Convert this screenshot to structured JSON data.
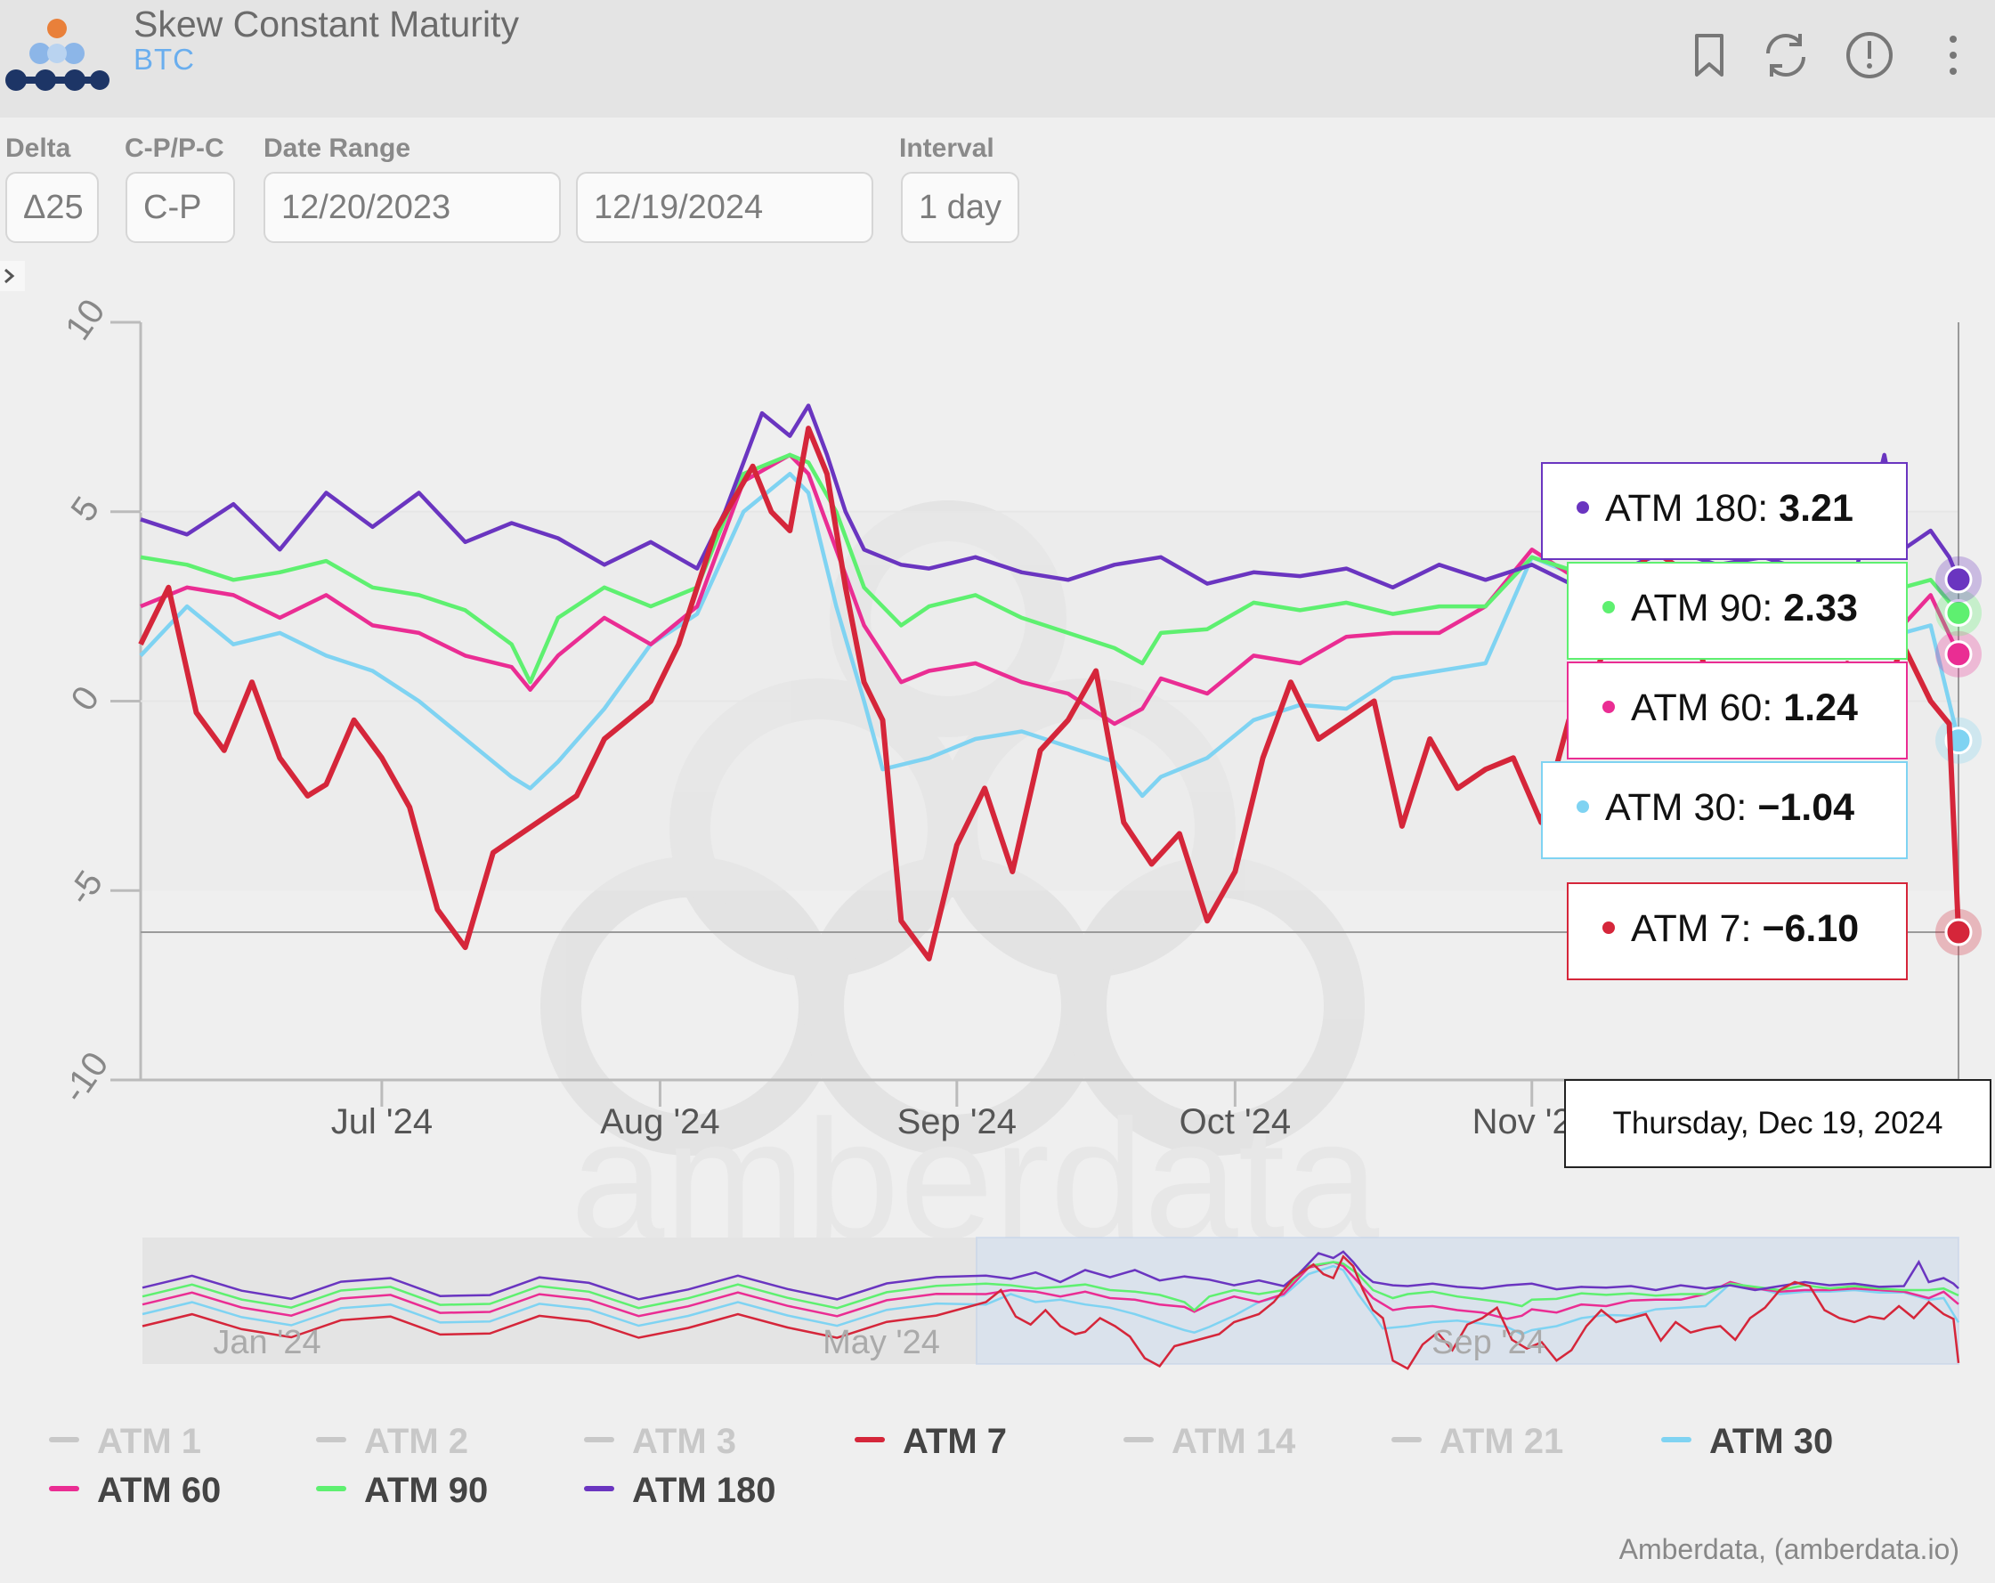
{
  "header": {
    "title": "Skew Constant Maturity",
    "subtitle": "BTC",
    "icons": [
      "bookmark-icon",
      "refresh-icon",
      "info-icon",
      "more-icon"
    ]
  },
  "controls": {
    "delta": {
      "label": "Delta",
      "value": "Δ25"
    },
    "cp": {
      "label": "C-P/P-C",
      "value": "C-P"
    },
    "date_range": {
      "label": "Date Range",
      "start": "12/20/2023",
      "end": "12/19/2024"
    },
    "interval": {
      "label": "Interval",
      "value": "1 day"
    }
  },
  "tooltip": {
    "date": "Thursday, Dec 19, 2024",
    "rows": [
      {
        "name": "ATM 180",
        "value": "3.21",
        "color": "#6a35c0"
      },
      {
        "name": "ATM 90",
        "value": "2.33",
        "color": "#5ef070"
      },
      {
        "name": "ATM 60",
        "value": "1.24",
        "color": "#ea2d93"
      },
      {
        "name": "ATM 30",
        "value": "−1.04",
        "color": "#7fd3f2"
      },
      {
        "name": "ATM 7",
        "value": "−6.10",
        "color": "#d5263a"
      }
    ]
  },
  "watermark": "amberdata",
  "credits": "Amberdata, (amberdata.io)",
  "navigator": {
    "labels": [
      "Jan '24",
      "May '24",
      "Sep '24"
    ]
  },
  "chart_data": {
    "type": "line",
    "title": "Skew Constant Maturity",
    "ylim": [
      -10,
      10
    ],
    "y_ticks": [
      "10",
      "5",
      "0",
      "-5",
      "-10"
    ],
    "x_ticks": [
      "Jul '24",
      "Aug '24",
      "Sep '24",
      "Oct '24",
      "Nov '24"
    ],
    "x_start": "2024-06-05",
    "x_end": "2024-12-19",
    "crosshair_y": -6.1,
    "legend": [
      {
        "name": "ATM 1",
        "color": "#c8c8c8",
        "visible": false
      },
      {
        "name": "ATM 2",
        "color": "#c8c8c8",
        "visible": false
      },
      {
        "name": "ATM 3",
        "color": "#c8c8c8",
        "visible": false
      },
      {
        "name": "ATM 7",
        "color": "#d5263a",
        "visible": true
      },
      {
        "name": "ATM 14",
        "color": "#c8c8c8",
        "visible": false
      },
      {
        "name": "ATM 21",
        "color": "#c8c8c8",
        "visible": false
      },
      {
        "name": "ATM 30",
        "color": "#7fd3f2",
        "visible": true
      },
      {
        "name": "ATM 60",
        "color": "#ea2d93",
        "visible": true
      },
      {
        "name": "ATM 90",
        "color": "#5ef070",
        "visible": true
      },
      {
        "name": "ATM 180",
        "color": "#6a35c0",
        "visible": true
      }
    ],
    "series": [
      {
        "name": "ATM 180",
        "color": "#6a35c0",
        "values": [
          [
            0,
            4.8
          ],
          [
            5,
            4.4
          ],
          [
            10,
            5.2
          ],
          [
            15,
            4.0
          ],
          [
            20,
            5.5
          ],
          [
            25,
            4.6
          ],
          [
            30,
            5.5
          ],
          [
            35,
            4.2
          ],
          [
            40,
            4.7
          ],
          [
            45,
            4.3
          ],
          [
            50,
            3.6
          ],
          [
            55,
            4.2
          ],
          [
            60,
            3.5
          ],
          [
            63,
            5.0
          ],
          [
            67,
            7.6
          ],
          [
            70,
            7.0
          ],
          [
            72,
            7.8
          ],
          [
            74,
            6.5
          ],
          [
            76,
            5.0
          ],
          [
            78,
            4.0
          ],
          [
            82,
            3.6
          ],
          [
            85,
            3.5
          ],
          [
            90,
            3.8
          ],
          [
            95,
            3.4
          ],
          [
            100,
            3.2
          ],
          [
            105,
            3.6
          ],
          [
            110,
            3.8
          ],
          [
            115,
            3.1
          ],
          [
            120,
            3.4
          ],
          [
            125,
            3.3
          ],
          [
            130,
            3.5
          ],
          [
            135,
            3.0
          ],
          [
            140,
            3.6
          ],
          [
            145,
            3.2
          ],
          [
            150,
            3.6
          ],
          [
            155,
            3.0
          ],
          [
            160,
            3.5
          ],
          [
            165,
            4.0
          ],
          [
            170,
            3.6
          ],
          [
            175,
            3.8
          ],
          [
            180,
            3.4
          ],
          [
            185,
            3.5
          ],
          [
            188,
            6.5
          ],
          [
            190,
            4.0
          ],
          [
            193,
            4.5
          ],
          [
            195,
            3.8
          ],
          [
            196,
            3.21
          ]
        ]
      },
      {
        "name": "ATM 90",
        "color": "#5ef070",
        "values": [
          [
            0,
            3.8
          ],
          [
            5,
            3.6
          ],
          [
            10,
            3.2
          ],
          [
            15,
            3.4
          ],
          [
            20,
            3.7
          ],
          [
            25,
            3.0
          ],
          [
            30,
            2.8
          ],
          [
            35,
            2.4
          ],
          [
            40,
            1.5
          ],
          [
            42,
            0.5
          ],
          [
            45,
            2.2
          ],
          [
            50,
            3.0
          ],
          [
            55,
            2.5
          ],
          [
            60,
            3.0
          ],
          [
            65,
            6.0
          ],
          [
            70,
            6.5
          ],
          [
            72,
            6.3
          ],
          [
            75,
            5.0
          ],
          [
            78,
            3.0
          ],
          [
            82,
            2.0
          ],
          [
            85,
            2.5
          ],
          [
            90,
            2.8
          ],
          [
            95,
            2.2
          ],
          [
            100,
            1.8
          ],
          [
            105,
            1.4
          ],
          [
            108,
            1.0
          ],
          [
            110,
            1.8
          ],
          [
            115,
            1.9
          ],
          [
            120,
            2.6
          ],
          [
            125,
            2.4
          ],
          [
            130,
            2.6
          ],
          [
            135,
            2.3
          ],
          [
            140,
            2.5
          ],
          [
            145,
            2.5
          ],
          [
            150,
            3.8
          ],
          [
            155,
            3.4
          ],
          [
            160,
            3.0
          ],
          [
            165,
            3.6
          ],
          [
            170,
            3.2
          ],
          [
            175,
            3.5
          ],
          [
            180,
            3.2
          ],
          [
            185,
            3.0
          ],
          [
            190,
            3.0
          ],
          [
            193,
            3.2
          ],
          [
            196,
            2.33
          ]
        ]
      },
      {
        "name": "ATM 60",
        "color": "#ea2d93",
        "values": [
          [
            0,
            2.5
          ],
          [
            5,
            3.0
          ],
          [
            10,
            2.8
          ],
          [
            15,
            2.2
          ],
          [
            20,
            2.8
          ],
          [
            25,
            2.0
          ],
          [
            30,
            1.8
          ],
          [
            35,
            1.2
          ],
          [
            40,
            0.9
          ],
          [
            42,
            0.3
          ],
          [
            45,
            1.2
          ],
          [
            50,
            2.2
          ],
          [
            55,
            1.5
          ],
          [
            60,
            2.5
          ],
          [
            65,
            5.8
          ],
          [
            70,
            6.5
          ],
          [
            72,
            6.0
          ],
          [
            75,
            4.0
          ],
          [
            78,
            2.0
          ],
          [
            82,
            0.5
          ],
          [
            85,
            0.8
          ],
          [
            90,
            1.0
          ],
          [
            95,
            0.5
          ],
          [
            100,
            0.2
          ],
          [
            105,
            -0.6
          ],
          [
            108,
            -0.2
          ],
          [
            110,
            0.6
          ],
          [
            115,
            0.2
          ],
          [
            120,
            1.2
          ],
          [
            125,
            1.0
          ],
          [
            130,
            1.7
          ],
          [
            135,
            1.8
          ],
          [
            140,
            1.8
          ],
          [
            145,
            2.5
          ],
          [
            150,
            4.0
          ],
          [
            155,
            3.2
          ],
          [
            160,
            2.8
          ],
          [
            165,
            3.0
          ],
          [
            170,
            3.0
          ],
          [
            175,
            3.2
          ],
          [
            180,
            3.0
          ],
          [
            185,
            2.8
          ],
          [
            190,
            2.0
          ],
          [
            193,
            2.8
          ],
          [
            196,
            1.24
          ]
        ]
      },
      {
        "name": "ATM 30",
        "color": "#7fd3f2",
        "values": [
          [
            0,
            1.2
          ],
          [
            5,
            2.5
          ],
          [
            10,
            1.5
          ],
          [
            15,
            1.8
          ],
          [
            20,
            1.2
          ],
          [
            25,
            0.8
          ],
          [
            30,
            0.0
          ],
          [
            35,
            -1.0
          ],
          [
            40,
            -2.0
          ],
          [
            42,
            -2.3
          ],
          [
            45,
            -1.6
          ],
          [
            50,
            -0.2
          ],
          [
            55,
            1.5
          ],
          [
            60,
            2.3
          ],
          [
            65,
            5.0
          ],
          [
            70,
            6.0
          ],
          [
            72,
            5.5
          ],
          [
            75,
            2.5
          ],
          [
            78,
            0.0
          ],
          [
            80,
            -1.8
          ],
          [
            85,
            -1.5
          ],
          [
            90,
            -1.0
          ],
          [
            95,
            -0.8
          ],
          [
            100,
            -1.2
          ],
          [
            105,
            -1.6
          ],
          [
            108,
            -2.5
          ],
          [
            110,
            -2.0
          ],
          [
            115,
            -1.5
          ],
          [
            120,
            -0.5
          ],
          [
            125,
            -0.1
          ],
          [
            130,
            -0.2
          ],
          [
            135,
            0.6
          ],
          [
            140,
            0.8
          ],
          [
            145,
            1.0
          ],
          [
            150,
            3.8
          ],
          [
            155,
            3.3
          ],
          [
            160,
            2.5
          ],
          [
            165,
            2.8
          ],
          [
            170,
            2.8
          ],
          [
            175,
            3.0
          ],
          [
            180,
            2.7
          ],
          [
            185,
            2.7
          ],
          [
            190,
            1.8
          ],
          [
            193,
            2.0
          ],
          [
            196,
            -1.04
          ]
        ]
      },
      {
        "name": "ATM 7",
        "color": "#d5263a",
        "values": [
          [
            0,
            1.5
          ],
          [
            3,
            3.0
          ],
          [
            6,
            -0.3
          ],
          [
            9,
            -1.3
          ],
          [
            12,
            0.5
          ],
          [
            15,
            -1.5
          ],
          [
            18,
            -2.5
          ],
          [
            20,
            -2.2
          ],
          [
            23,
            -0.5
          ],
          [
            26,
            -1.5
          ],
          [
            29,
            -2.8
          ],
          [
            32,
            -5.5
          ],
          [
            35,
            -6.5
          ],
          [
            38,
            -4.0
          ],
          [
            41,
            -3.5
          ],
          [
            44,
            -3.0
          ],
          [
            47,
            -2.5
          ],
          [
            50,
            -1.0
          ],
          [
            55,
            0.0
          ],
          [
            58,
            1.5
          ],
          [
            62,
            4.5
          ],
          [
            66,
            6.2
          ],
          [
            68,
            5.0
          ],
          [
            70,
            4.5
          ],
          [
            72,
            7.2
          ],
          [
            74,
            6.0
          ],
          [
            76,
            3.0
          ],
          [
            78,
            0.5
          ],
          [
            80,
            -0.5
          ],
          [
            82,
            -5.8
          ],
          [
            85,
            -6.8
          ],
          [
            88,
            -3.8
          ],
          [
            91,
            -2.3
          ],
          [
            94,
            -4.5
          ],
          [
            97,
            -1.3
          ],
          [
            100,
            -0.5
          ],
          [
            103,
            0.8
          ],
          [
            106,
            -3.2
          ],
          [
            109,
            -4.3
          ],
          [
            112,
            -3.5
          ],
          [
            115,
            -5.8
          ],
          [
            118,
            -4.5
          ],
          [
            121,
            -1.5
          ],
          [
            124,
            0.5
          ],
          [
            127,
            -1.0
          ],
          [
            130,
            -0.5
          ],
          [
            133,
            0.0
          ],
          [
            136,
            -3.3
          ],
          [
            139,
            -1.0
          ],
          [
            142,
            -2.3
          ],
          [
            145,
            -1.8
          ],
          [
            148,
            -1.5
          ],
          [
            151,
            -3.2
          ],
          [
            154,
            -0.5
          ],
          [
            157,
            0.8
          ],
          [
            160,
            3.0
          ],
          [
            163,
            4.0
          ],
          [
            166,
            3.5
          ],
          [
            169,
            0.5
          ],
          [
            172,
            -0.5
          ],
          [
            175,
            -1.0
          ],
          [
            178,
            -0.3
          ],
          [
            181,
            -0.6
          ],
          [
            184,
            1.0
          ],
          [
            187,
            -0.5
          ],
          [
            190,
            1.5
          ],
          [
            193,
            0.0
          ],
          [
            195,
            -0.6
          ],
          [
            196,
            -6.1
          ]
        ]
      }
    ]
  }
}
